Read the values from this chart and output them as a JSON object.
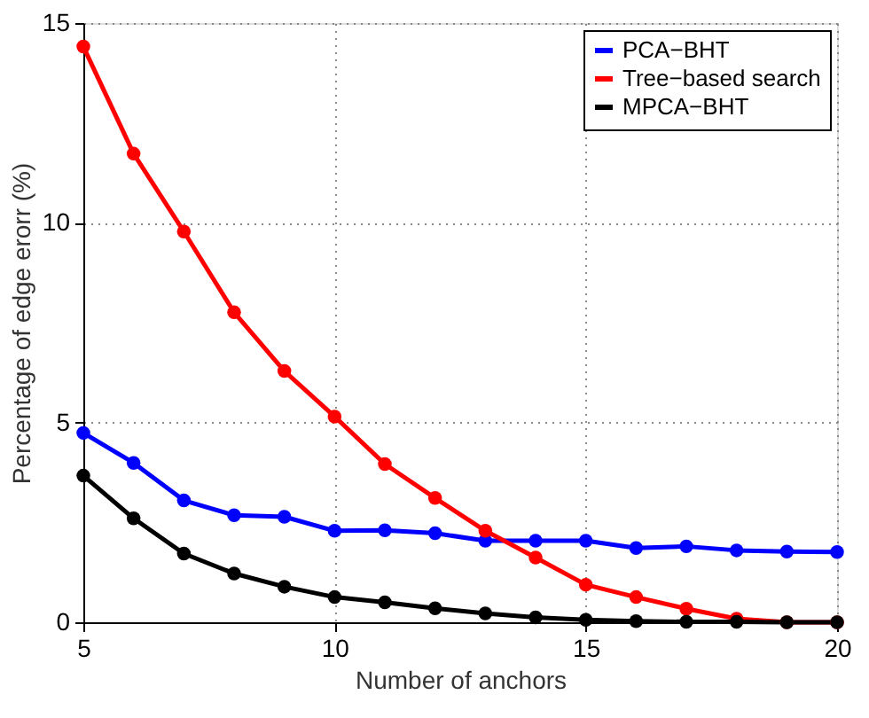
{
  "chart_data": {
    "type": "line",
    "xlabel": "Number of anchors",
    "ylabel": "Percentage of edge erorr (%)",
    "x": [
      5,
      6,
      7,
      8,
      9,
      10,
      11,
      12,
      13,
      14,
      15,
      16,
      17,
      18,
      19,
      20
    ],
    "series": [
      {
        "name": "PCA−BHT",
        "color": "#0000ff",
        "values": [
          4.74,
          3.99,
          3.05,
          2.68,
          2.64,
          2.29,
          2.3,
          2.23,
          2.04,
          2.04,
          2.04,
          1.86,
          1.9,
          1.8,
          1.77,
          1.76
        ]
      },
      {
        "name": "Tree−based search",
        "color": "#ff0000",
        "values": [
          14.41,
          11.73,
          9.78,
          7.76,
          6.29,
          5.15,
          3.96,
          3.11,
          2.29,
          1.62,
          0.94,
          0.63,
          0.34,
          0.09,
          0,
          0
        ]
      },
      {
        "name": "MPCA−BHT",
        "color": "#000000",
        "values": [
          3.67,
          2.6,
          1.72,
          1.22,
          0.89,
          0.63,
          0.5,
          0.35,
          0.22,
          0.12,
          0.06,
          0.03,
          0.01,
          0.01,
          0,
          0
        ]
      }
    ],
    "xlim": [
      5,
      20
    ],
    "xticks": [
      5,
      10,
      15,
      20
    ],
    "ylim": [
      0,
      15
    ],
    "yticks": [
      0,
      5,
      10,
      15
    ],
    "grid": true,
    "legend": "top right",
    "marker": "circle",
    "line_style": "solid"
  }
}
